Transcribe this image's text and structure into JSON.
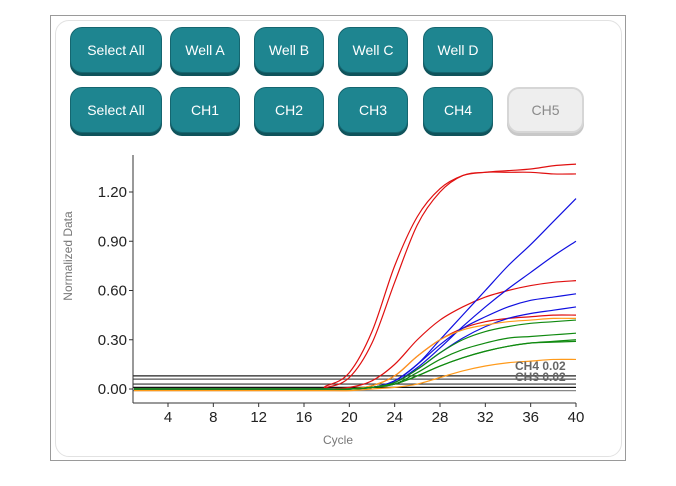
{
  "well_buttons": [
    {
      "label": "Select All",
      "active": true
    },
    {
      "label": "Well A",
      "active": true
    },
    {
      "label": "Well B",
      "active": true
    },
    {
      "label": "Well C",
      "active": true
    },
    {
      "label": "Well D",
      "active": true
    }
  ],
  "channel_buttons": [
    {
      "label": "Select All",
      "active": true
    },
    {
      "label": "CH1",
      "active": true
    },
    {
      "label": "CH2",
      "active": true
    },
    {
      "label": "CH3",
      "active": true
    },
    {
      "label": "CH4",
      "active": true
    },
    {
      "label": "CH5",
      "active": false
    }
  ],
  "colors": {
    "button": "#1e8590",
    "button_disabled": "#eeeeee"
  },
  "chart_data": {
    "type": "line",
    "xlabel": "Cycle",
    "ylabel": "Normalized Data",
    "xlim": [
      1,
      40
    ],
    "ylim": [
      -0.085,
      1.43
    ],
    "xticks": [
      4,
      8,
      12,
      16,
      20,
      24,
      28,
      32,
      36,
      40
    ],
    "yticks": [
      0.0,
      0.3,
      0.6,
      0.9,
      1.2
    ],
    "ytick_labels": [
      "0.00",
      "0.30",
      "0.60",
      "0.90",
      "1.20"
    ],
    "grid": false,
    "x": [
      1,
      16,
      18,
      20,
      22,
      24,
      26,
      28,
      30,
      32,
      34,
      36,
      38,
      40
    ],
    "series": [
      {
        "color": "#e01010",
        "values": [
          0,
          0,
          0.02,
          0.1,
          0.35,
          0.75,
          1.05,
          1.22,
          1.3,
          1.32,
          1.33,
          1.34,
          1.36,
          1.37
        ]
      },
      {
        "color": "#e01010",
        "values": [
          0,
          0,
          0.01,
          0.07,
          0.28,
          0.65,
          1.0,
          1.2,
          1.3,
          1.32,
          1.32,
          1.32,
          1.31,
          1.31
        ]
      },
      {
        "color": "#e01010",
        "values": [
          0,
          0,
          0,
          0.01,
          0.05,
          0.15,
          0.3,
          0.42,
          0.5,
          0.56,
          0.6,
          0.63,
          0.65,
          0.66
        ]
      },
      {
        "color": "#e01010",
        "values": [
          0,
          0,
          0,
          0,
          0.02,
          0.08,
          0.2,
          0.3,
          0.37,
          0.41,
          0.43,
          0.44,
          0.45,
          0.45
        ]
      },
      {
        "color": "#1010e0",
        "values": [
          0,
          0,
          0,
          0,
          0.01,
          0.05,
          0.15,
          0.3,
          0.45,
          0.6,
          0.75,
          0.88,
          1.02,
          1.16
        ]
      },
      {
        "color": "#1010e0",
        "values": [
          0,
          0,
          0,
          0,
          0.01,
          0.04,
          0.13,
          0.25,
          0.38,
          0.5,
          0.61,
          0.71,
          0.81,
          0.9
        ]
      },
      {
        "color": "#1010e0",
        "values": [
          0,
          0,
          0,
          0,
          0.01,
          0.05,
          0.15,
          0.27,
          0.37,
          0.44,
          0.5,
          0.54,
          0.56,
          0.58
        ]
      },
      {
        "color": "#1010e0",
        "values": [
          0,
          0,
          0,
          0,
          0.01,
          0.04,
          0.12,
          0.22,
          0.31,
          0.38,
          0.43,
          0.46,
          0.48,
          0.5
        ]
      },
      {
        "color": "#ff9a1a",
        "values": [
          0,
          0,
          0,
          0,
          0.02,
          0.08,
          0.2,
          0.3,
          0.36,
          0.39,
          0.41,
          0.42,
          0.43,
          0.43
        ]
      },
      {
        "color": "#ff9a1a",
        "values": [
          -0.01,
          -0.01,
          -0.01,
          -0.01,
          0,
          0.01,
          0.03,
          0.07,
          0.11,
          0.14,
          0.16,
          0.17,
          0.18,
          0.18
        ]
      },
      {
        "color": "#108a10",
        "values": [
          0,
          0,
          0,
          0,
          0.01,
          0.04,
          0.12,
          0.22,
          0.3,
          0.35,
          0.38,
          0.4,
          0.41,
          0.42
        ]
      },
      {
        "color": "#108a10",
        "values": [
          0,
          0,
          0,
          0,
          0.01,
          0.03,
          0.1,
          0.18,
          0.24,
          0.28,
          0.31,
          0.32,
          0.33,
          0.34
        ]
      },
      {
        "color": "#108a10",
        "values": [
          0,
          0,
          0,
          0,
          0.01,
          0.03,
          0.08,
          0.14,
          0.19,
          0.23,
          0.26,
          0.28,
          0.29,
          0.3
        ]
      },
      {
        "color": "#108a10",
        "values": [
          0,
          0,
          0,
          0,
          0.01,
          0.03,
          0.08,
          0.14,
          0.19,
          0.23,
          0.26,
          0.28,
          0.285,
          0.29
        ]
      }
    ],
    "thresholds": [
      {
        "value": 0.08,
        "color": "#222222"
      },
      {
        "value": 0.06,
        "color": "#555555"
      },
      {
        "value": 0.03,
        "color": "#333333"
      },
      {
        "value": 0.01,
        "color": "#111111"
      },
      {
        "value": -0.01,
        "color": "#888888"
      }
    ],
    "threshold_labels": [
      "CH4 0.02",
      "CH3 0.02"
    ]
  }
}
